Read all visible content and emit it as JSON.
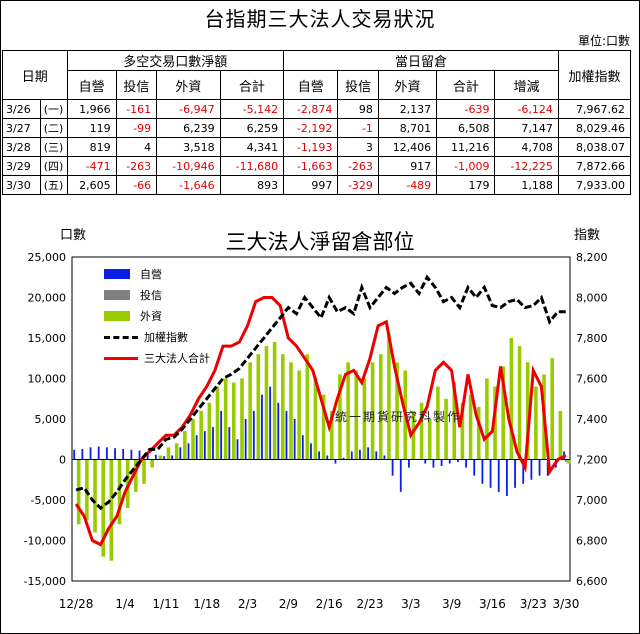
{
  "header": {
    "title": "台指期三大法人交易狀況",
    "unit_label": "單位:口數"
  },
  "table": {
    "date_header": "日期",
    "group_trade": "多空交易口數淨額",
    "group_position": "當日留倉",
    "index_header": "加權指數",
    "sub_trade": [
      "自營",
      "投信",
      "外資",
      "合計"
    ],
    "sub_position": [
      "自營",
      "投信",
      "外資",
      "合計",
      "增減"
    ],
    "rows": [
      {
        "date": "3/26",
        "weekday": "(一)",
        "trade": [
          "1,966",
          "-161",
          "-6,947",
          "-5,142"
        ],
        "position": [
          "-2,874",
          "98",
          "2,137",
          "-639",
          "-6,124"
        ],
        "index": "7,967.62"
      },
      {
        "date": "3/27",
        "weekday": "(二)",
        "trade": [
          "119",
          "-99",
          "6,239",
          "6,259"
        ],
        "position": [
          "-2,192",
          "-1",
          "8,701",
          "6,508",
          "7,147"
        ],
        "index": "8,029.46"
      },
      {
        "date": "3/28",
        "weekday": "(三)",
        "trade": [
          "819",
          "4",
          "3,518",
          "4,341"
        ],
        "position": [
          "-1,193",
          "3",
          "12,406",
          "11,216",
          "4,708"
        ],
        "index": "8,038.07"
      },
      {
        "date": "3/29",
        "weekday": "(四)",
        "trade": [
          "-471",
          "-263",
          "-10,946",
          "-11,680"
        ],
        "position": [
          "-1,663",
          "-263",
          "917",
          "-1,009",
          "-12,225"
        ],
        "index": "7,872.66"
      },
      {
        "date": "3/30",
        "weekday": "(五)",
        "trade": [
          "2,605",
          "-66",
          "-1,646",
          "893"
        ],
        "position": [
          "997",
          "-329",
          "-489",
          "179",
          "1,188"
        ],
        "index": "7,933.00"
      }
    ]
  },
  "chart_data": {
    "type": "bar",
    "title": "三大法人淨留倉部位",
    "ylabel": "口數",
    "y2label": "指數",
    "ylim": [
      -15000,
      25000
    ],
    "y2lim": [
      6600,
      8200
    ],
    "yticks": [
      "25,000",
      "20,000",
      "15,000",
      "10,000",
      "5,000",
      "0",
      "-5,000",
      "-10,000",
      "-15,000"
    ],
    "y2ticks": [
      "8,200",
      "8,000",
      "7,800",
      "7,600",
      "7,400",
      "7,200",
      "7,000",
      "6,800",
      "6,600"
    ],
    "xtick_labels": [
      "12/28",
      "1/4",
      "1/11",
      "1/18",
      "2/3",
      "2/9",
      "2/16",
      "2/23",
      "3/3",
      "3/9",
      "3/16",
      "3/23",
      "3/30"
    ],
    "xtick_positions": [
      0,
      6,
      11,
      16,
      21,
      26,
      31,
      36,
      41,
      46,
      51,
      56,
      60
    ],
    "legend_position": "top-left",
    "watermark": "統一期貨研究科製作",
    "colors": {
      "self": "#0a1ee8",
      "trust": "#7f7f7f",
      "foreign": "#99cc00",
      "index": "#000000",
      "total": "#ee0000"
    },
    "series": [
      {
        "name": "自營",
        "values": [
          1200,
          1300,
          1500,
          1600,
          1500,
          1400,
          1300,
          1200,
          1100,
          800,
          600,
          400,
          500,
          1500,
          2000,
          3000,
          3500,
          4000,
          6000,
          4000,
          2500,
          5000,
          6000,
          8000,
          9000,
          7000,
          6000,
          5000,
          3000,
          2000,
          1000,
          500,
          -500,
          200,
          1000,
          1200,
          1500,
          1000,
          500,
          -2000,
          -4000,
          -1000,
          0,
          -500,
          -1000,
          -800,
          -500,
          -300,
          -1000,
          -2000,
          -3000,
          -3500,
          -4000,
          -4500,
          -3500,
          -3000,
          -2500,
          -2000,
          -2000,
          -1000,
          1000
        ]
      },
      {
        "name": "投信",
        "values": [
          0,
          0,
          0,
          0,
          0,
          0,
          0,
          0,
          0,
          0,
          0,
          0,
          0,
          0,
          0,
          0,
          0,
          0,
          0,
          0,
          0,
          0,
          0,
          0,
          0,
          0,
          0,
          0,
          0,
          0,
          0,
          0,
          0,
          0,
          0,
          0,
          0,
          0,
          0,
          0,
          0,
          0,
          0,
          0,
          0,
          0,
          0,
          0,
          0,
          0,
          0,
          0,
          0,
          0,
          0,
          0,
          0,
          0,
          0,
          -300,
          -300
        ]
      },
      {
        "name": "外資",
        "values": [
          -8000,
          -7500,
          -9000,
          -12000,
          -12500,
          -8000,
          -6000,
          -4000,
          -3000,
          -1000,
          500,
          1500,
          2000,
          3500,
          5000,
          6000,
          7000,
          9000,
          10000,
          9500,
          10000,
          12000,
          13000,
          14000,
          14500,
          13000,
          12000,
          11000,
          13000,
          10000,
          8000,
          6000,
          10500,
          12000,
          11000,
          10000,
          12000,
          13000,
          15500,
          12000,
          11000,
          6000,
          7000,
          5000,
          9000,
          7500,
          9500,
          7000,
          8000,
          6500,
          10000,
          9000,
          11500,
          15000,
          14000,
          12000,
          9000,
          10500,
          12500,
          6000,
          -500
        ]
      },
      {
        "name": "三大法人合計",
        "values": [
          -5500,
          -7000,
          -10000,
          -10500,
          -8500,
          -7000,
          -4000,
          -2000,
          0,
          1000,
          2000,
          3000,
          3000,
          4000,
          5500,
          7500,
          9000,
          11000,
          14000,
          14000,
          14500,
          16500,
          19500,
          20000,
          20000,
          19000,
          15000,
          14000,
          12500,
          11000,
          7500,
          4000,
          7500,
          10500,
          11000,
          9500,
          12500,
          16500,
          17000,
          11500,
          7000,
          3000,
          4500,
          6500,
          11000,
          12000,
          11000,
          4000,
          10500,
          5500,
          2500,
          3500,
          11500,
          5000,
          1000,
          -1000,
          11000,
          9000,
          -1500,
          0,
          500
        ]
      },
      {
        "name": "加權指數",
        "axis": "right",
        "values": [
          7050,
          7060,
          7000,
          6960,
          6990,
          7040,
          7100,
          7150,
          7200,
          7250,
          7250,
          7300,
          7310,
          7350,
          7400,
          7450,
          7500,
          7550,
          7600,
          7620,
          7650,
          7700,
          7750,
          7800,
          7850,
          7900,
          7950,
          7920,
          8000,
          7950,
          7900,
          8000,
          7930,
          7950,
          7920,
          8050,
          7950,
          8000,
          8050,
          8020,
          8050,
          8070,
          8020,
          8100,
          8050,
          7980,
          8000,
          7950,
          8050,
          8000,
          8050,
          7960,
          7950,
          7980,
          7990,
          7950,
          7960,
          8000,
          7880,
          7930,
          7930
        ]
      }
    ]
  }
}
